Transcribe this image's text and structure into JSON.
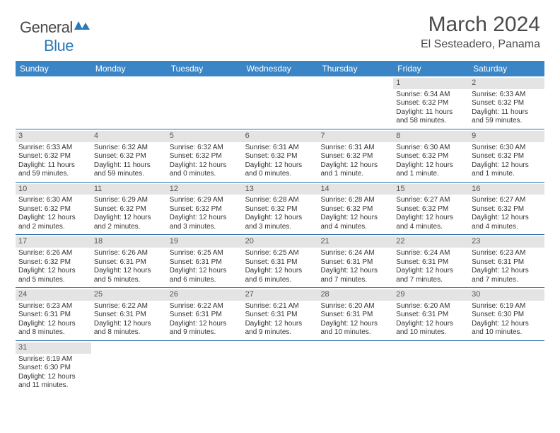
{
  "logo": {
    "text1": "General",
    "text2": "Blue"
  },
  "title": "March 2024",
  "location": "El Sesteadero, Panama",
  "colors": {
    "header_bg": "#3a85c6",
    "header_text": "#ffffff",
    "row_border": "#2a6fa8",
    "daynum_bg": "#e4e4e4",
    "daynum_text": "#555555",
    "body_text": "#333333",
    "title_text": "#4a4a4a",
    "logo_blue": "#2a7ab8"
  },
  "day_names": [
    "Sunday",
    "Monday",
    "Tuesday",
    "Wednesday",
    "Thursday",
    "Friday",
    "Saturday"
  ],
  "weeks": [
    [
      {
        "n": "",
        "sr": "",
        "ss": "",
        "d1": "",
        "d2": ""
      },
      {
        "n": "",
        "sr": "",
        "ss": "",
        "d1": "",
        "d2": ""
      },
      {
        "n": "",
        "sr": "",
        "ss": "",
        "d1": "",
        "d2": ""
      },
      {
        "n": "",
        "sr": "",
        "ss": "",
        "d1": "",
        "d2": ""
      },
      {
        "n": "",
        "sr": "",
        "ss": "",
        "d1": "",
        "d2": ""
      },
      {
        "n": "1",
        "sr": "Sunrise: 6:34 AM",
        "ss": "Sunset: 6:32 PM",
        "d1": "Daylight: 11 hours",
        "d2": "and 58 minutes."
      },
      {
        "n": "2",
        "sr": "Sunrise: 6:33 AM",
        "ss": "Sunset: 6:32 PM",
        "d1": "Daylight: 11 hours",
        "d2": "and 59 minutes."
      }
    ],
    [
      {
        "n": "3",
        "sr": "Sunrise: 6:33 AM",
        "ss": "Sunset: 6:32 PM",
        "d1": "Daylight: 11 hours",
        "d2": "and 59 minutes."
      },
      {
        "n": "4",
        "sr": "Sunrise: 6:32 AM",
        "ss": "Sunset: 6:32 PM",
        "d1": "Daylight: 11 hours",
        "d2": "and 59 minutes."
      },
      {
        "n": "5",
        "sr": "Sunrise: 6:32 AM",
        "ss": "Sunset: 6:32 PM",
        "d1": "Daylight: 12 hours",
        "d2": "and 0 minutes."
      },
      {
        "n": "6",
        "sr": "Sunrise: 6:31 AM",
        "ss": "Sunset: 6:32 PM",
        "d1": "Daylight: 12 hours",
        "d2": "and 0 minutes."
      },
      {
        "n": "7",
        "sr": "Sunrise: 6:31 AM",
        "ss": "Sunset: 6:32 PM",
        "d1": "Daylight: 12 hours",
        "d2": "and 1 minute."
      },
      {
        "n": "8",
        "sr": "Sunrise: 6:30 AM",
        "ss": "Sunset: 6:32 PM",
        "d1": "Daylight: 12 hours",
        "d2": "and 1 minute."
      },
      {
        "n": "9",
        "sr": "Sunrise: 6:30 AM",
        "ss": "Sunset: 6:32 PM",
        "d1": "Daylight: 12 hours",
        "d2": "and 1 minute."
      }
    ],
    [
      {
        "n": "10",
        "sr": "Sunrise: 6:30 AM",
        "ss": "Sunset: 6:32 PM",
        "d1": "Daylight: 12 hours",
        "d2": "and 2 minutes."
      },
      {
        "n": "11",
        "sr": "Sunrise: 6:29 AM",
        "ss": "Sunset: 6:32 PM",
        "d1": "Daylight: 12 hours",
        "d2": "and 2 minutes."
      },
      {
        "n": "12",
        "sr": "Sunrise: 6:29 AM",
        "ss": "Sunset: 6:32 PM",
        "d1": "Daylight: 12 hours",
        "d2": "and 3 minutes."
      },
      {
        "n": "13",
        "sr": "Sunrise: 6:28 AM",
        "ss": "Sunset: 6:32 PM",
        "d1": "Daylight: 12 hours",
        "d2": "and 3 minutes."
      },
      {
        "n": "14",
        "sr": "Sunrise: 6:28 AM",
        "ss": "Sunset: 6:32 PM",
        "d1": "Daylight: 12 hours",
        "d2": "and 4 minutes."
      },
      {
        "n": "15",
        "sr": "Sunrise: 6:27 AM",
        "ss": "Sunset: 6:32 PM",
        "d1": "Daylight: 12 hours",
        "d2": "and 4 minutes."
      },
      {
        "n": "16",
        "sr": "Sunrise: 6:27 AM",
        "ss": "Sunset: 6:32 PM",
        "d1": "Daylight: 12 hours",
        "d2": "and 4 minutes."
      }
    ],
    [
      {
        "n": "17",
        "sr": "Sunrise: 6:26 AM",
        "ss": "Sunset: 6:32 PM",
        "d1": "Daylight: 12 hours",
        "d2": "and 5 minutes."
      },
      {
        "n": "18",
        "sr": "Sunrise: 6:26 AM",
        "ss": "Sunset: 6:31 PM",
        "d1": "Daylight: 12 hours",
        "d2": "and 5 minutes."
      },
      {
        "n": "19",
        "sr": "Sunrise: 6:25 AM",
        "ss": "Sunset: 6:31 PM",
        "d1": "Daylight: 12 hours",
        "d2": "and 6 minutes."
      },
      {
        "n": "20",
        "sr": "Sunrise: 6:25 AM",
        "ss": "Sunset: 6:31 PM",
        "d1": "Daylight: 12 hours",
        "d2": "and 6 minutes."
      },
      {
        "n": "21",
        "sr": "Sunrise: 6:24 AM",
        "ss": "Sunset: 6:31 PM",
        "d1": "Daylight: 12 hours",
        "d2": "and 7 minutes."
      },
      {
        "n": "22",
        "sr": "Sunrise: 6:24 AM",
        "ss": "Sunset: 6:31 PM",
        "d1": "Daylight: 12 hours",
        "d2": "and 7 minutes."
      },
      {
        "n": "23",
        "sr": "Sunrise: 6:23 AM",
        "ss": "Sunset: 6:31 PM",
        "d1": "Daylight: 12 hours",
        "d2": "and 7 minutes."
      }
    ],
    [
      {
        "n": "24",
        "sr": "Sunrise: 6:23 AM",
        "ss": "Sunset: 6:31 PM",
        "d1": "Daylight: 12 hours",
        "d2": "and 8 minutes."
      },
      {
        "n": "25",
        "sr": "Sunrise: 6:22 AM",
        "ss": "Sunset: 6:31 PM",
        "d1": "Daylight: 12 hours",
        "d2": "and 8 minutes."
      },
      {
        "n": "26",
        "sr": "Sunrise: 6:22 AM",
        "ss": "Sunset: 6:31 PM",
        "d1": "Daylight: 12 hours",
        "d2": "and 9 minutes."
      },
      {
        "n": "27",
        "sr": "Sunrise: 6:21 AM",
        "ss": "Sunset: 6:31 PM",
        "d1": "Daylight: 12 hours",
        "d2": "and 9 minutes."
      },
      {
        "n": "28",
        "sr": "Sunrise: 6:20 AM",
        "ss": "Sunset: 6:31 PM",
        "d1": "Daylight: 12 hours",
        "d2": "and 10 minutes."
      },
      {
        "n": "29",
        "sr": "Sunrise: 6:20 AM",
        "ss": "Sunset: 6:31 PM",
        "d1": "Daylight: 12 hours",
        "d2": "and 10 minutes."
      },
      {
        "n": "30",
        "sr": "Sunrise: 6:19 AM",
        "ss": "Sunset: 6:30 PM",
        "d1": "Daylight: 12 hours",
        "d2": "and 10 minutes."
      }
    ],
    [
      {
        "n": "31",
        "sr": "Sunrise: 6:19 AM",
        "ss": "Sunset: 6:30 PM",
        "d1": "Daylight: 12 hours",
        "d2": "and 11 minutes."
      },
      {
        "n": "",
        "sr": "",
        "ss": "",
        "d1": "",
        "d2": ""
      },
      {
        "n": "",
        "sr": "",
        "ss": "",
        "d1": "",
        "d2": ""
      },
      {
        "n": "",
        "sr": "",
        "ss": "",
        "d1": "",
        "d2": ""
      },
      {
        "n": "",
        "sr": "",
        "ss": "",
        "d1": "",
        "d2": ""
      },
      {
        "n": "",
        "sr": "",
        "ss": "",
        "d1": "",
        "d2": ""
      },
      {
        "n": "",
        "sr": "",
        "ss": "",
        "d1": "",
        "d2": ""
      }
    ]
  ]
}
